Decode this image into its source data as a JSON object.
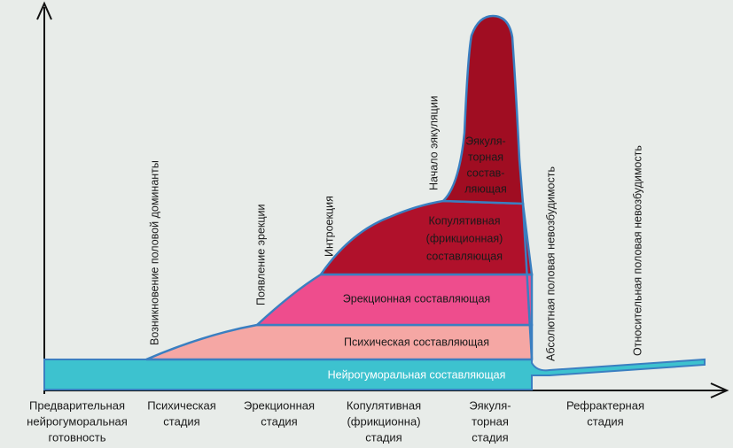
{
  "layers": [
    {
      "lines": [
        "Нейрогуморальная составляющая"
      ]
    },
    {
      "lines": [
        "Психическая составляющая"
      ]
    },
    {
      "lines": [
        "Эрекционная составляющая"
      ]
    },
    {
      "lines": [
        "Копулятивная",
        "(фрикционная)",
        "составляющая"
      ]
    },
    {
      "lines": [
        "Эякуля-",
        "торная",
        "состав-",
        "ляющая"
      ]
    }
  ],
  "events": [
    "Возникновение половой доминанты",
    "Появление эрекции",
    "Интроекция",
    "Начало эякуляции",
    "Абсолютная половая невозбудимость",
    "Относительная половая невозбудимость"
  ],
  "stages": [
    {
      "lines": [
        "Предварительная",
        "нейрогуморальная",
        "готовность"
      ]
    },
    {
      "lines": [
        "Психическая",
        "стадия"
      ]
    },
    {
      "lines": [
        "Эрекционная",
        "стадия"
      ]
    },
    {
      "lines": [
        "Копулятивная",
        "(фрикционна)",
        "стадия"
      ]
    },
    {
      "lines": [
        "Эякуля-",
        "торная",
        "стадия"
      ]
    },
    {
      "lines": [
        "Рефрактерная",
        "стадия"
      ]
    }
  ]
}
